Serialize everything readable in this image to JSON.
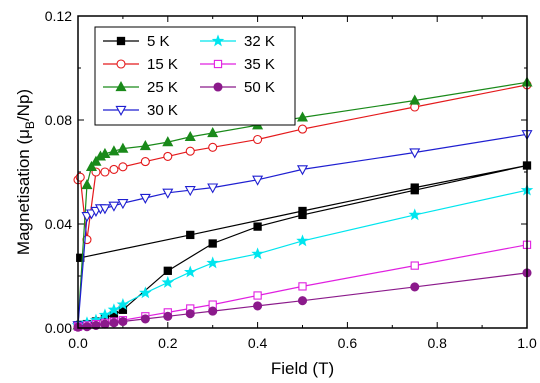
{
  "chart_data": {
    "type": "line",
    "xlabel": "Field (T)",
    "ylabel_main": "Magnetisation (μ",
    "ylabel_sub": "B",
    "ylabel_end": "/Np)",
    "xlim": [
      0,
      1.0
    ],
    "ylim": [
      0,
      0.12
    ],
    "xticks": [
      "0.0",
      "0.2",
      "0.4",
      "0.6",
      "0.8",
      "1.0"
    ],
    "yticks": [
      "0.00",
      "0.04",
      "0.08",
      "0.12"
    ],
    "grid": false,
    "legend_position": "top-left",
    "series": [
      {
        "name": "5 K",
        "color": "#000000",
        "marker": "square-filled",
        "x": [
          0,
          0.005,
          0.02,
          0.04,
          0.06,
          0.08,
          0.1,
          0.2,
          0.3,
          0.4,
          0.5,
          0.75,
          1.0,
          0.75,
          0.5,
          0.25,
          0.005
        ],
        "y": [
          0.001,
          0.0012,
          0.0015,
          0.0025,
          0.004,
          0.005,
          0.007,
          0.022,
          0.0325,
          0.039,
          0.0435,
          0.053,
          0.0625,
          0.054,
          0.045,
          0.0358,
          0.027
        ]
      },
      {
        "name": "15 K",
        "color": "#e41a1c",
        "marker": "circle-open",
        "x": [
          0,
          0.005,
          0.02,
          0.04,
          0.06,
          0.08,
          0.1,
          0.15,
          0.2,
          0.25,
          0.3,
          0.4,
          0.5,
          0.75,
          1.0
        ],
        "y": [
          0.057,
          0.058,
          0.034,
          0.06,
          0.06,
          0.061,
          0.062,
          0.064,
          0.066,
          0.068,
          0.0695,
          0.0725,
          0.0765,
          0.085,
          0.0935
        ]
      },
      {
        "name": "25 K",
        "color": "#1a8a1a",
        "marker": "triangle-up-filled",
        "x": [
          0,
          0.02,
          0.03,
          0.04,
          0.05,
          0.06,
          0.08,
          0.1,
          0.15,
          0.2,
          0.25,
          0.3,
          0.4,
          0.5,
          0.75,
          1.0
        ],
        "y": [
          0.001,
          0.055,
          0.062,
          0.064,
          0.066,
          0.067,
          0.068,
          0.069,
          0.07,
          0.0715,
          0.0735,
          0.075,
          0.078,
          0.081,
          0.0875,
          0.0945
        ]
      },
      {
        "name": "30 K",
        "color": "#1f1fd1",
        "marker": "triangle-down-open",
        "x": [
          0,
          0.02,
          0.03,
          0.04,
          0.05,
          0.06,
          0.08,
          0.1,
          0.15,
          0.2,
          0.25,
          0.3,
          0.4,
          0.5,
          0.75,
          1.0
        ],
        "y": [
          0.001,
          0.043,
          0.044,
          0.045,
          0.046,
          0.046,
          0.047,
          0.048,
          0.05,
          0.052,
          0.053,
          0.054,
          0.057,
          0.061,
          0.0675,
          0.0745
        ]
      },
      {
        "name": "32 K",
        "color": "#00e5ee",
        "marker": "star-filled",
        "x": [
          0,
          0.02,
          0.04,
          0.06,
          0.08,
          0.1,
          0.15,
          0.2,
          0.25,
          0.3,
          0.4,
          0.5,
          0.75,
          1.0
        ],
        "y": [
          0.001,
          0.002,
          0.003,
          0.005,
          0.007,
          0.009,
          0.0135,
          0.0175,
          0.0215,
          0.025,
          0.0285,
          0.0335,
          0.0435,
          0.053
        ]
      },
      {
        "name": "35 K",
        "color": "#e020e0",
        "marker": "square-open",
        "x": [
          0,
          0.02,
          0.04,
          0.06,
          0.08,
          0.1,
          0.15,
          0.2,
          0.25,
          0.3,
          0.4,
          0.5,
          0.75,
          1.0
        ],
        "y": [
          0.0005,
          0.001,
          0.0015,
          0.002,
          0.0025,
          0.003,
          0.0045,
          0.006,
          0.0075,
          0.009,
          0.0125,
          0.016,
          0.024,
          0.032
        ]
      },
      {
        "name": "50 K",
        "color": "#8b1a8b",
        "marker": "circle-filled",
        "x": [
          0,
          0.02,
          0.04,
          0.06,
          0.08,
          0.1,
          0.15,
          0.2,
          0.25,
          0.3,
          0.4,
          0.5,
          0.75,
          1.0
        ],
        "y": [
          0.0003,
          0.0005,
          0.001,
          0.0015,
          0.002,
          0.0025,
          0.0035,
          0.0045,
          0.0055,
          0.0065,
          0.0085,
          0.0105,
          0.0158,
          0.0212
        ]
      }
    ]
  }
}
